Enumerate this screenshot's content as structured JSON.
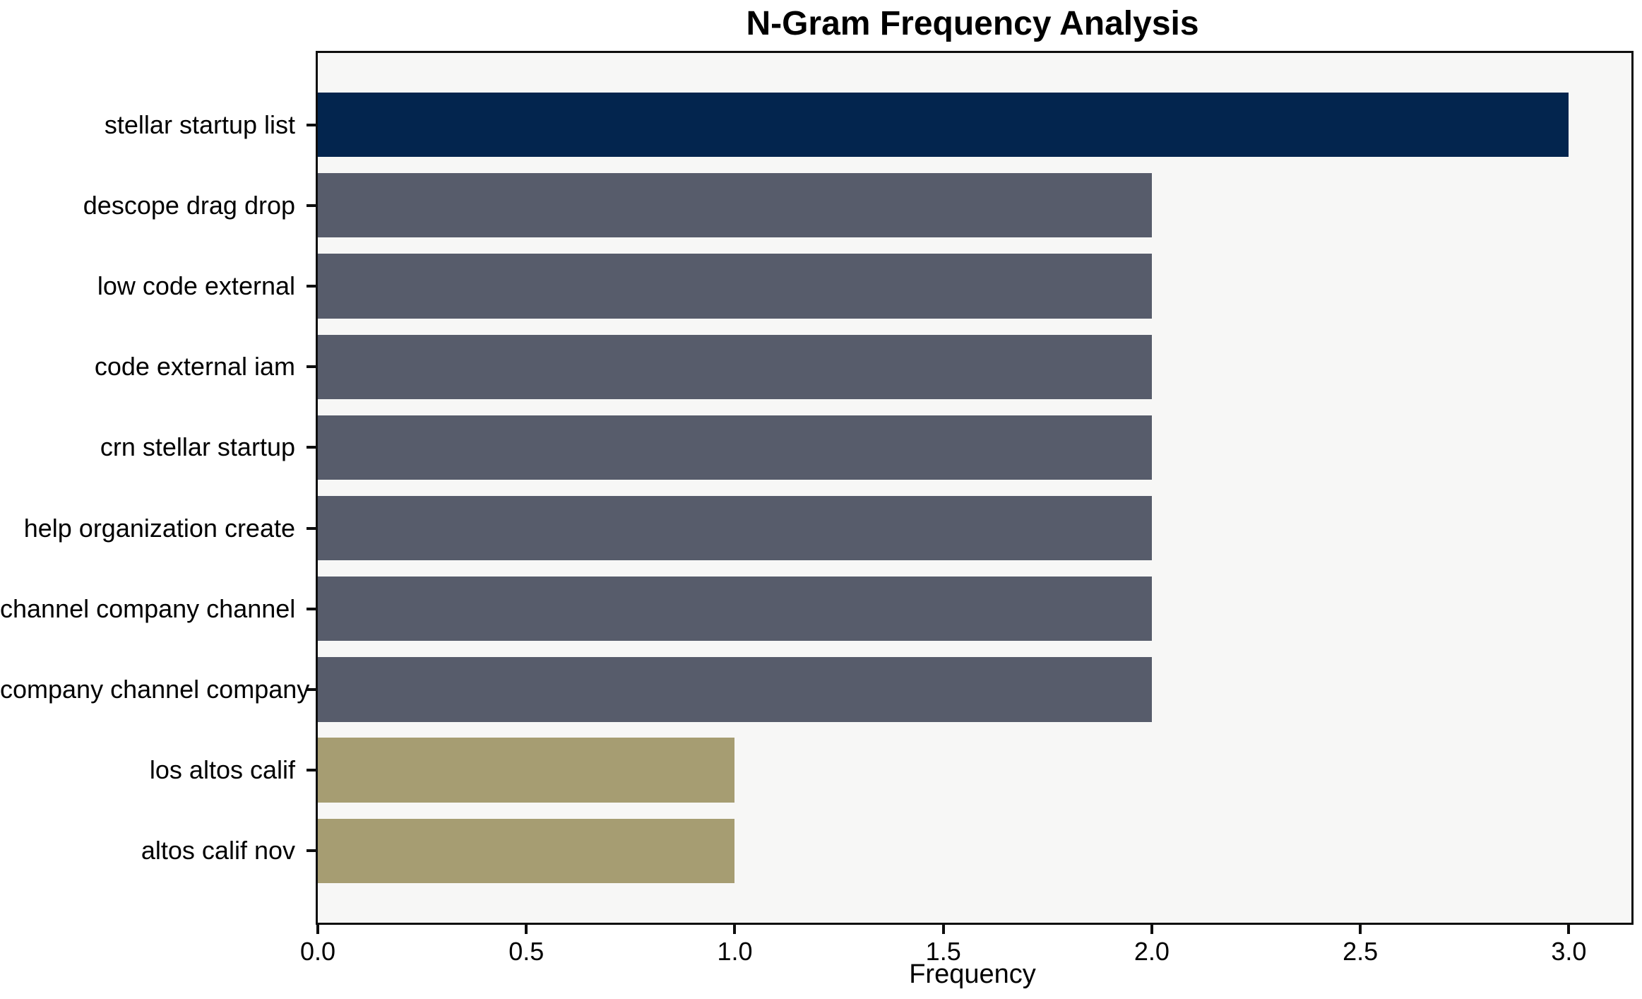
{
  "chart_data": {
    "type": "bar",
    "orientation": "horizontal",
    "title": "N-Gram Frequency Analysis",
    "xlabel": "Frequency",
    "ylabel": "",
    "categories": [
      "stellar startup list",
      "descope drag drop",
      "low code external",
      "code external iam",
      "crn stellar startup",
      "help organization create",
      "channel company channel",
      "company channel company",
      "los altos calif",
      "altos calif nov"
    ],
    "values": [
      3,
      2,
      2,
      2,
      2,
      2,
      2,
      2,
      1,
      1
    ],
    "bar_colors": [
      "#03254e",
      "#575c6b",
      "#575c6b",
      "#575c6b",
      "#575c6b",
      "#575c6b",
      "#575c6b",
      "#575c6b",
      "#a69d72",
      "#a69d72"
    ],
    "xlim": [
      0,
      3.15
    ],
    "xticks": [
      0.0,
      0.5,
      1.0,
      1.5,
      2.0,
      2.5,
      3.0
    ],
    "xtick_labels": [
      "0.0",
      "0.5",
      "1.0",
      "1.5",
      "2.0",
      "2.5",
      "3.0"
    ],
    "grid": false,
    "legend": null,
    "plot_background": "#f7f7f6",
    "figure_background": "#ffffff",
    "axis_color": "#0e0e0e",
    "text_color": "#000000"
  }
}
